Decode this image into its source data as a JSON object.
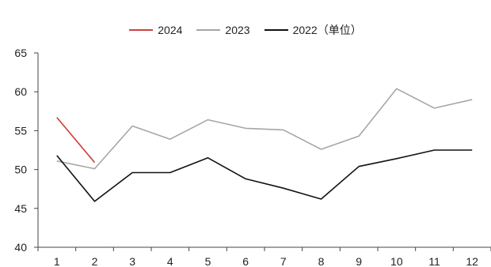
{
  "chart_data": {
    "type": "line",
    "categories": [
      "1",
      "2",
      "3",
      "4",
      "5",
      "6",
      "7",
      "8",
      "9",
      "10",
      "11",
      "12"
    ],
    "ylim": [
      40,
      65
    ],
    "yticks": [
      40,
      45,
      50,
      55,
      60,
      65
    ],
    "legend_position": "top-center",
    "grid": false,
    "series": [
      {
        "name": "2024",
        "color": "#d0413c",
        "values": [
          56.7,
          50.9,
          null,
          null,
          null,
          null,
          null,
          null,
          null,
          null,
          null,
          null
        ]
      },
      {
        "name": "2023",
        "color": "#a6a6a6",
        "values": [
          51.1,
          50.1,
          55.6,
          53.9,
          56.4,
          55.3,
          55.1,
          52.6,
          54.3,
          60.4,
          57.9,
          59.0
        ]
      },
      {
        "name": "2022（单位）",
        "color": "#111111",
        "values": [
          51.8,
          45.9,
          49.6,
          49.6,
          51.5,
          48.8,
          47.6,
          46.2,
          50.4,
          51.4,
          52.5,
          52.5
        ]
      }
    ]
  }
}
